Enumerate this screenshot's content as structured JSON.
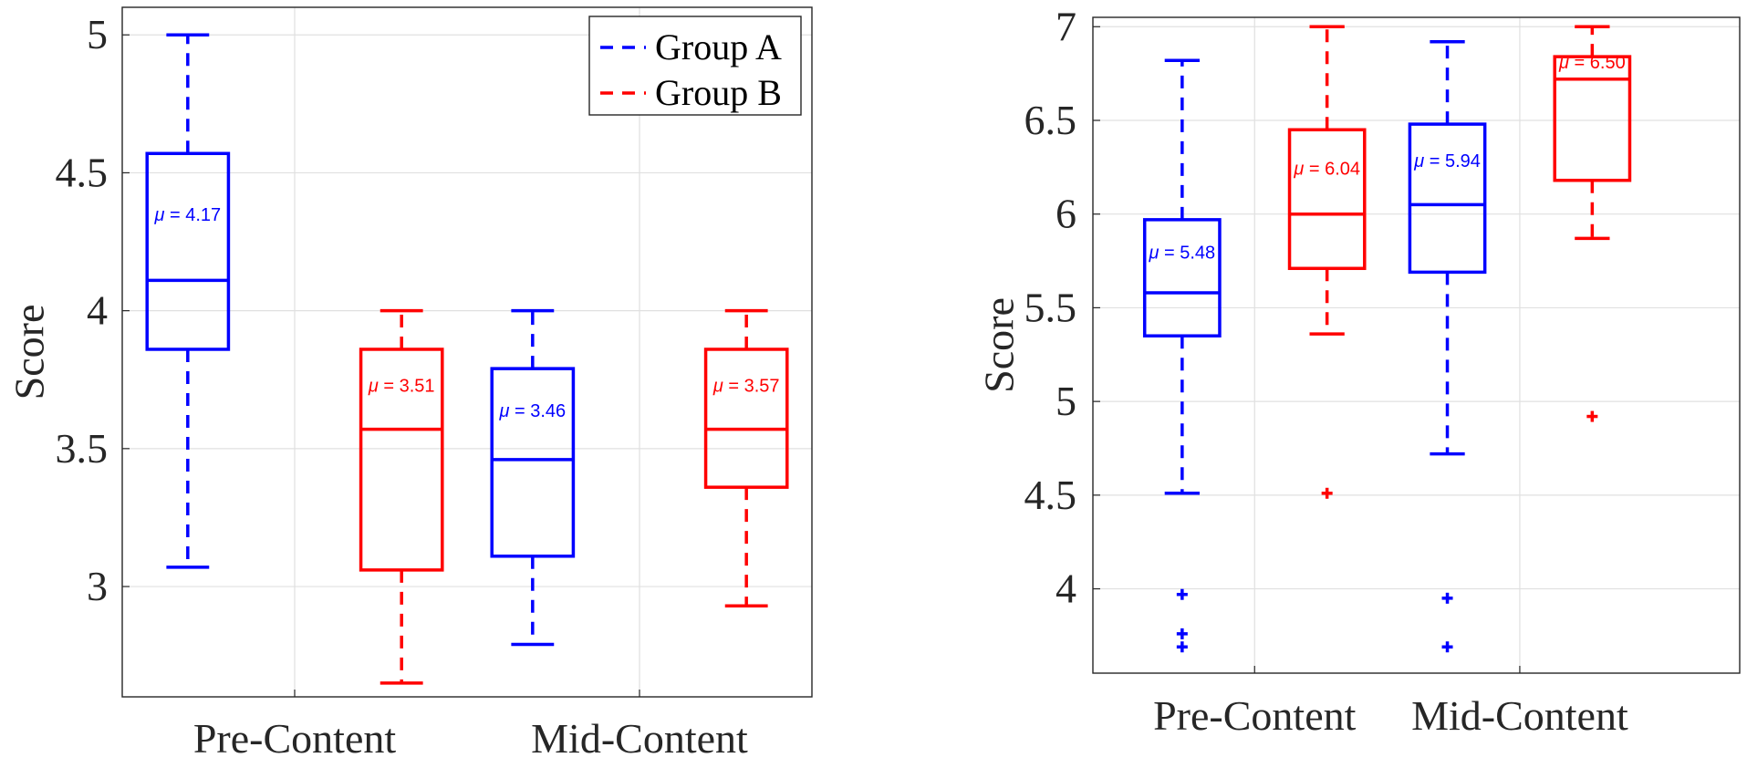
{
  "colors": {
    "group_a": "#0000ff",
    "group_b": "#ff0000",
    "grid": "#e0e0e0",
    "axis": "#262626"
  },
  "chart_data": [
    {
      "type": "box",
      "categories": [
        "Pre-Content",
        "Mid-Content"
      ],
      "ylabel": "Score",
      "xlabel": "",
      "ylim": [
        2.6,
        5.1
      ],
      "yticks": [
        "5",
        "4.5",
        "4",
        "3.5",
        "3"
      ],
      "ytick_values": [
        5,
        4.5,
        4,
        3.5,
        3
      ],
      "grid": true,
      "legend": {
        "position": "top-right",
        "entries": [
          "Group A",
          "Group B"
        ]
      },
      "series": [
        {
          "name": "Group A",
          "color": "#0000ff",
          "boxes": [
            {
              "category": "Pre-Content",
              "whisker_low": 3.07,
              "q1": 3.86,
              "median": 4.11,
              "q3": 4.57,
              "whisker_high": 5.0,
              "mean_label": "μ = 4.17",
              "outliers": []
            },
            {
              "category": "Mid-Content",
              "whisker_low": 2.79,
              "q1": 3.11,
              "median": 3.46,
              "q3": 3.79,
              "whisker_high": 4.0,
              "mean_label": "μ = 3.46",
              "outliers": []
            }
          ]
        },
        {
          "name": "Group B",
          "color": "#ff0000",
          "boxes": [
            {
              "category": "Pre-Content",
              "whisker_low": 2.65,
              "q1": 3.06,
              "median": 3.57,
              "q3": 3.86,
              "whisker_high": 4.0,
              "mean_label": "μ = 3.51",
              "outliers": []
            },
            {
              "category": "Mid-Content",
              "whisker_low": 2.93,
              "q1": 3.36,
              "median": 3.57,
              "q3": 3.86,
              "whisker_high": 4.0,
              "mean_label": "μ = 3.57",
              "outliers": []
            }
          ]
        }
      ]
    },
    {
      "type": "box",
      "categories": [
        "Pre-Content",
        "Mid-Content"
      ],
      "ylabel": "Score",
      "xlabel": "",
      "ylim": [
        3.55,
        7.05
      ],
      "yticks": [
        "7",
        "6.5",
        "6",
        "5.5",
        "5",
        "4.5",
        "4"
      ],
      "ytick_values": [
        7,
        6.5,
        6,
        5.5,
        5,
        4.5,
        4
      ],
      "grid": true,
      "legend": null,
      "series": [
        {
          "name": "Group A",
          "color": "#0000ff",
          "boxes": [
            {
              "category": "Pre-Content",
              "whisker_low": 4.51,
              "q1": 5.35,
              "median": 5.58,
              "q3": 5.97,
              "whisker_high": 6.82,
              "mean_label": "μ = 5.48",
              "outliers": [
                3.97,
                3.76,
                3.69
              ]
            },
            {
              "category": "Mid-Content",
              "whisker_low": 4.72,
              "q1": 5.69,
              "median": 6.05,
              "q3": 6.48,
              "whisker_high": 6.92,
              "mean_label": "μ = 5.94",
              "outliers": [
                3.95,
                3.69
              ]
            }
          ]
        },
        {
          "name": "Group B",
          "color": "#ff0000",
          "boxes": [
            {
              "category": "Pre-Content",
              "whisker_low": 5.36,
              "q1": 5.71,
              "median": 6.0,
              "q3": 6.45,
              "whisker_high": 7.0,
              "mean_label": "μ = 6.04",
              "outliers": [
                4.51
              ]
            },
            {
              "category": "Mid-Content",
              "whisker_low": 5.87,
              "q1": 6.18,
              "median": 6.72,
              "q3": 6.84,
              "whisker_high": 7.0,
              "mean_label": "μ = 6.50",
              "outliers": [
                4.92
              ]
            }
          ]
        }
      ]
    }
  ]
}
